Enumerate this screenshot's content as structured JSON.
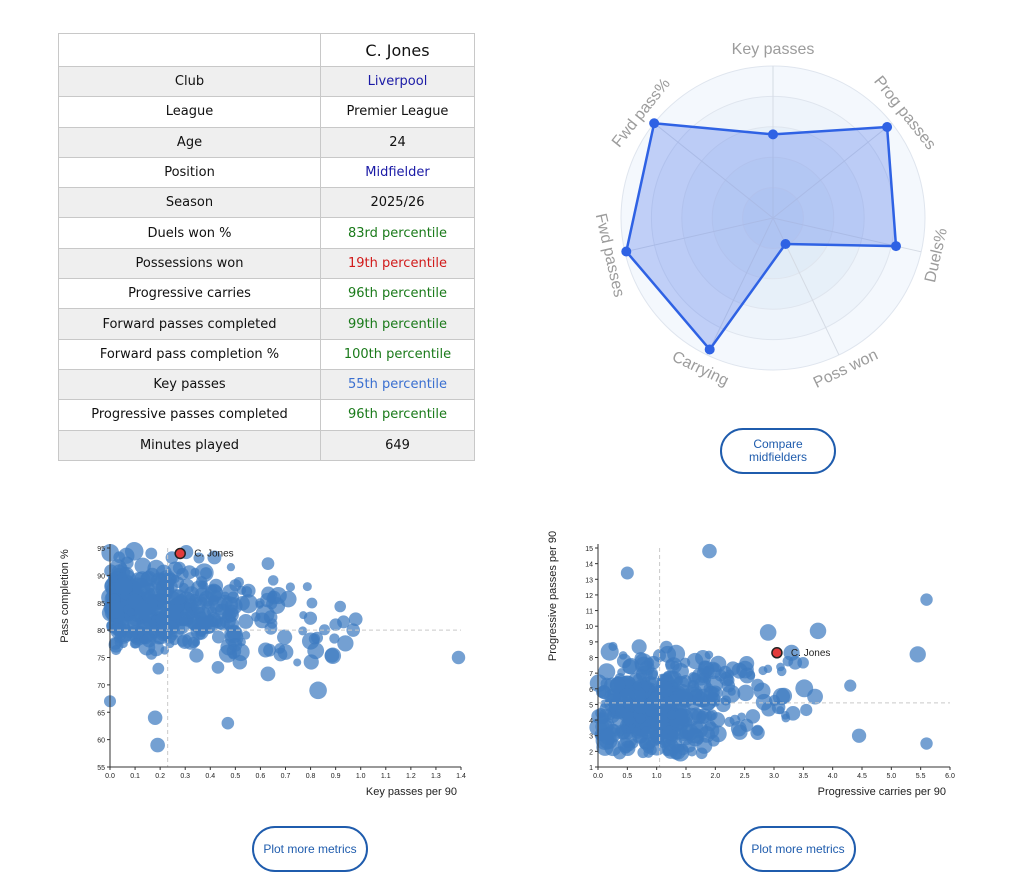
{
  "player_table": {
    "player_name": "C. Jones",
    "rows": [
      {
        "label": "Club",
        "value": "Liverpool",
        "color": "#1a1aa6"
      },
      {
        "label": "League",
        "value": "Premier League",
        "color": "#111111"
      },
      {
        "label": "Age",
        "value": "24",
        "color": "#111111"
      },
      {
        "label": "Position",
        "value": "Midfielder",
        "color": "#1a1aa6"
      },
      {
        "label": "Season",
        "value": "2025/26",
        "color": "#111111"
      },
      {
        "label": "Duels won %",
        "value": "83rd percentile",
        "color": "#1a7a1a"
      },
      {
        "label": "Possessions won",
        "value": "19th percentile",
        "color": "#d11a1a"
      },
      {
        "label": "Progressive carries",
        "value": "96th percentile",
        "color": "#1a7a1a"
      },
      {
        "label": "Forward passes completed",
        "value": "99th percentile",
        "color": "#1a7a1a"
      },
      {
        "label": "Forward pass completion %",
        "value": "100th percentile",
        "color": "#1a7a1a"
      },
      {
        "label": "Key passes",
        "value": "55th percentile",
        "color": "#3a6fd0"
      },
      {
        "label": "Progressive passes completed",
        "value": "96th percentile",
        "color": "#1a7a1a"
      },
      {
        "label": "Minutes played",
        "value": "649",
        "color": "#111111"
      }
    ]
  },
  "radar": {
    "axes": [
      "Key passes",
      "Prog passes",
      "Duels%",
      "Poss won",
      "Carrying",
      "Fwd passes",
      "Fwd pass%"
    ],
    "values": [
      55,
      96,
      83,
      19,
      96,
      99,
      100
    ],
    "fill_color": "#4a72ea",
    "line_color": "#2f62e4"
  },
  "buttons": {
    "compare_label_line1": "Compare",
    "compare_label_line2": "midfielders",
    "plot_more_1": "Plot more metrics",
    "plot_more_2": "Plot more metrics"
  },
  "chart_data": [
    {
      "type": "scatter",
      "xlabel": "Key passes per 90",
      "ylabel": "Pass completion %",
      "xlim": [
        0,
        1.4
      ],
      "ylim": [
        55,
        95
      ],
      "xticks": [
        "0.0",
        "0.1",
        "0.2",
        "0.3",
        "0.4",
        "0.5",
        "0.6",
        "0.7",
        "0.8",
        "0.9",
        "1.0",
        "1.1",
        "1.2",
        "1.3",
        "1.4"
      ],
      "yticks": [
        "55",
        "60",
        "65",
        "70",
        "75",
        "80",
        "85",
        "90",
        "95"
      ],
      "reference_lines": {
        "x": 0.23,
        "y": 80
      },
      "highlight": {
        "label": "C. Jones",
        "x": 0.28,
        "y": 94
      },
      "point_color": "#3f7cc0",
      "highlight_color": "#e23b3b",
      "notable_points": [
        {
          "x": 1.39,
          "y": 75
        },
        {
          "x": 0.97,
          "y": 80
        },
        {
          "x": 0.98,
          "y": 82
        },
        {
          "x": 0.83,
          "y": 69
        },
        {
          "x": 0.47,
          "y": 63
        },
        {
          "x": 0.18,
          "y": 64
        },
        {
          "x": 0.19,
          "y": 59
        },
        {
          "x": 0.0,
          "y": 67
        },
        {
          "x": 0.63,
          "y": 72
        },
        {
          "x": 0.7,
          "y": 76
        },
        {
          "x": 0.8,
          "y": 78
        },
        {
          "x": 0.9,
          "y": 81
        }
      ]
    },
    {
      "type": "scatter",
      "xlabel": "Progressive carries per 90",
      "ylabel": "Progressive passes per 90",
      "xlim": [
        0,
        6
      ],
      "ylim": [
        1,
        15
      ],
      "xticks": [
        "0.0",
        "0.5",
        "1.0",
        "1.5",
        "2.0",
        "2.5",
        "3.0",
        "3.5",
        "4.0",
        "4.5",
        "5.0",
        "5.5",
        "6.0"
      ],
      "yticks": [
        "1",
        "2",
        "3",
        "4",
        "5",
        "6",
        "7",
        "8",
        "9",
        "10",
        "11",
        "12",
        "13",
        "14",
        "15"
      ],
      "reference_lines": {
        "x": 1.05,
        "y": 5.1
      },
      "highlight": {
        "label": "C. Jones",
        "x": 3.05,
        "y": 8.3
      },
      "point_color": "#3f7cc0",
      "highlight_color": "#e23b3b",
      "notable_points": [
        {
          "x": 1.9,
          "y": 14.8
        },
        {
          "x": 0.5,
          "y": 13.4
        },
        {
          "x": 5.6,
          "y": 11.7
        },
        {
          "x": 5.45,
          "y": 8.2
        },
        {
          "x": 3.75,
          "y": 9.7
        },
        {
          "x": 2.9,
          "y": 9.6
        },
        {
          "x": 4.45,
          "y": 3.0
        },
        {
          "x": 5.6,
          "y": 2.5
        },
        {
          "x": 4.3,
          "y": 6.2
        },
        {
          "x": 3.7,
          "y": 5.5
        },
        {
          "x": 3.3,
          "y": 8.3
        },
        {
          "x": 2.3,
          "y": 7.3
        }
      ]
    }
  ]
}
